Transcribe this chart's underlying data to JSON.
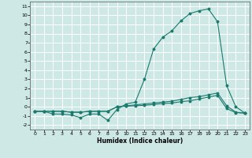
{
  "xlabel": "Humidex (Indice chaleur)",
  "bg_color": "#cde8e5",
  "grid_color": "#ffffff",
  "line_color": "#1a7a6e",
  "xlim": [
    -0.5,
    23.5
  ],
  "ylim": [
    -2.5,
    11.5
  ],
  "xticks": [
    0,
    1,
    2,
    3,
    4,
    5,
    6,
    7,
    8,
    9,
    10,
    11,
    12,
    13,
    14,
    15,
    16,
    17,
    18,
    19,
    20,
    21,
    22,
    23
  ],
  "yticks": [
    -2,
    -1,
    0,
    1,
    2,
    3,
    4,
    5,
    6,
    7,
    8,
    9,
    10,
    11
  ],
  "series1_x": [
    0,
    1,
    2,
    3,
    4,
    5,
    6,
    7,
    8,
    9,
    10,
    11,
    12,
    13,
    14,
    15,
    16,
    17,
    18,
    19,
    20,
    21,
    22,
    23
  ],
  "series1_y": [
    -0.5,
    -0.5,
    -0.8,
    -0.8,
    -0.9,
    -1.2,
    -0.8,
    -0.8,
    -1.5,
    -0.3,
    0.3,
    0.5,
    3.0,
    6.3,
    7.6,
    8.3,
    9.4,
    10.2,
    10.5,
    10.7,
    9.3,
    2.3,
    0.0,
    -0.7
  ],
  "series2_x": [
    0,
    1,
    2,
    3,
    4,
    5,
    6,
    7,
    8,
    9,
    10,
    11,
    12,
    13,
    14,
    15,
    16,
    17,
    18,
    19,
    20,
    21,
    22,
    23
  ],
  "series2_y": [
    -0.5,
    -0.5,
    -0.5,
    -0.5,
    -0.6,
    -0.6,
    -0.5,
    -0.5,
    -0.5,
    0.0,
    0.1,
    0.2,
    0.3,
    0.4,
    0.5,
    0.6,
    0.8,
    1.0,
    1.1,
    1.3,
    1.5,
    0.1,
    -0.6,
    -0.7
  ],
  "series3_x": [
    0,
    1,
    2,
    3,
    4,
    5,
    6,
    7,
    8,
    9,
    10,
    11,
    12,
    13,
    14,
    15,
    16,
    17,
    18,
    19,
    20,
    21,
    22,
    23
  ],
  "series3_y": [
    -0.5,
    -0.5,
    -0.5,
    -0.5,
    -0.6,
    -0.6,
    -0.5,
    -0.5,
    -0.5,
    0.0,
    0.05,
    0.1,
    0.15,
    0.25,
    0.35,
    0.4,
    0.55,
    0.65,
    0.85,
    1.05,
    1.25,
    -0.2,
    -0.65,
    -0.7
  ]
}
